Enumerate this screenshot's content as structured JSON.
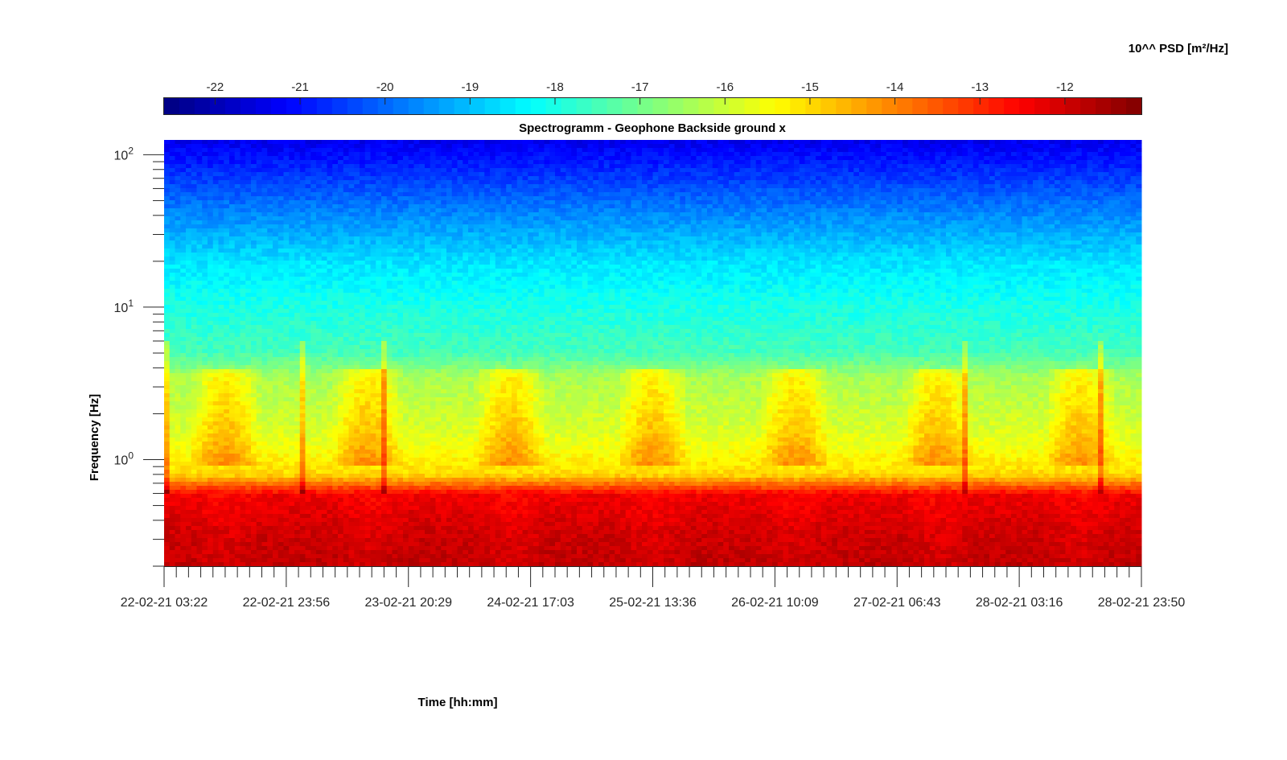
{
  "chart_data": {
    "type": "heatmap",
    "title": "Spectrogramm - Geophone Backside ground x",
    "xlabel": "Time [hh:mm]",
    "ylabel": "Frequency [Hz]",
    "colorbar_label": "10^^ PSD [m²/Hz]",
    "colormap": "jet",
    "x_ticks": [
      "22-02-21 03:22",
      "22-02-21 23:56",
      "23-02-21 20:29",
      "24-02-21 17:03",
      "25-02-21 13:36",
      "26-02-21 10:09",
      "27-02-21 06:43",
      "28-02-21 03:16",
      "28-02-21 23:50"
    ],
    "y_scale": "log",
    "y_ticks": [
      {
        "base": "10",
        "exp": "0",
        "value": 1
      },
      {
        "base": "10",
        "exp": "1",
        "value": 10
      },
      {
        "base": "10",
        "exp": "2",
        "value": 100
      }
    ],
    "ylim": [
      0.2,
      125
    ],
    "colorbar_ticks": [
      "-22",
      "-21",
      "-20",
      "-19",
      "-18",
      "-17",
      "-16",
      "-15",
      "-14",
      "-13",
      "-12"
    ],
    "clim": [
      -22.6,
      -11.1
    ],
    "colorbar_placement": "top",
    "log_psd_profile": [
      {
        "frequency_hz": 0.2,
        "log_psd": -12.0
      },
      {
        "frequency_hz": 0.35,
        "log_psd": -12.2
      },
      {
        "frequency_hz": 0.6,
        "log_psd": -12.6
      },
      {
        "frequency_hz": 0.8,
        "log_psd": -15.0
      },
      {
        "frequency_hz": 1.5,
        "log_psd": -15.8
      },
      {
        "frequency_hz": 3.5,
        "log_psd": -16.4
      },
      {
        "frequency_hz": 5,
        "log_psd": -17.5
      },
      {
        "frequency_hz": 10,
        "log_psd": -18.0
      },
      {
        "frequency_hz": 20,
        "log_psd": -18.6
      },
      {
        "frequency_hz": 40,
        "log_psd": -19.6
      },
      {
        "frequency_hz": 70,
        "log_psd": -20.5
      },
      {
        "frequency_hz": 125,
        "log_psd": -21.4
      }
    ]
  }
}
